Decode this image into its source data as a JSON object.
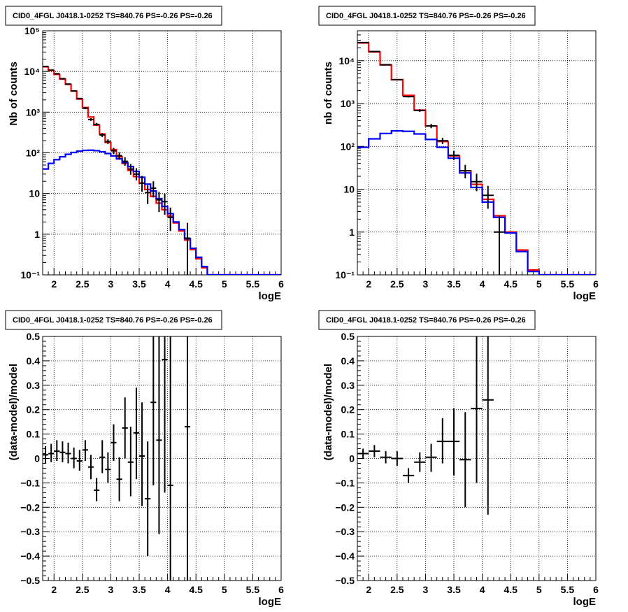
{
  "colors": {
    "data": "#000000",
    "total_model": "#ff0000",
    "source_model": "#0000ff",
    "grid": "#000000",
    "frame": "#000000"
  },
  "chart_data": [
    {
      "type": "line",
      "title": "CID0_4FGL J0418.1-0252 TS=840.76 PS=-0.26 PS=-0.26",
      "xlabel": "logE",
      "ylabel": "Nb of counts",
      "yscale": "log",
      "xlim": [
        1.8,
        6
      ],
      "ylim": [
        0.1,
        100000
      ],
      "grid": true,
      "xticks": [
        "2",
        "2.5",
        "3",
        "3.5",
        "4",
        "4.5",
        "5",
        "5.5",
        "6"
      ],
      "yticks": [
        "10⁻¹",
        "1",
        "10",
        "10²",
        "10³",
        "10⁴",
        "10⁵"
      ],
      "bin_edges": [
        1.8,
        1.9,
        2.0,
        2.1,
        2.2,
        2.3,
        2.4,
        2.5,
        2.6,
        2.7,
        2.8,
        2.9,
        3.0,
        3.1,
        3.2,
        3.3,
        3.4,
        3.5,
        3.6,
        3.7,
        3.8,
        3.9,
        4.0,
        4.1,
        4.2,
        4.3,
        4.4,
        4.5,
        4.6,
        4.7,
        4.8,
        4.9,
        5.0,
        5.1,
        5.2,
        5.3,
        5.4,
        5.5,
        5.6,
        5.7,
        5.8,
        5.9,
        6.0
      ],
      "series": [
        {
          "name": "",
          "color": "#ff0000",
          "kind": "step",
          "values": [
            13000,
            10500,
            8500,
            6500,
            4800,
            3300,
            2100,
            1300,
            760,
            480,
            290,
            180,
            120,
            80,
            55,
            37,
            26,
            18,
            12.5,
            8.5,
            5.8,
            4,
            2.8,
            1.9,
            1.2,
            0.72,
            0.42,
            0.25,
            0.15,
            0.1,
            0.1,
            0.1,
            0.1,
            0.1,
            0.1,
            0.1,
            0.1,
            0.1,
            0.1,
            0.1,
            0.1,
            0.1
          ]
        },
        {
          "name": "",
          "color": "#0000ff",
          "kind": "step",
          "values": [
            40,
            55,
            68,
            80,
            92,
            102,
            110,
            115,
            116,
            113,
            106,
            96,
            84,
            71,
            58,
            46,
            35,
            25,
            17,
            11.5,
            7.5,
            4.8,
            3.2,
            2.0,
            1.3,
            0.78,
            0.45,
            0.27,
            0.16,
            0.1,
            0.1,
            0.1,
            0.1,
            0.1,
            0.1,
            0.1,
            0.1,
            0.1,
            0.1,
            0.1,
            0.1,
            0.1
          ]
        },
        {
          "name": "",
          "color": "#000000",
          "kind": "errorbar",
          "points": [
            {
              "x": 1.85,
              "y": 13300,
              "ylo": 13050,
              "yhi": 13550
            },
            {
              "x": 1.95,
              "y": 10800,
              "ylo": 10600,
              "yhi": 11000
            },
            {
              "x": 2.05,
              "y": 8800,
              "ylo": 8600,
              "yhi": 9000
            },
            {
              "x": 2.15,
              "y": 6650,
              "ylo": 6480,
              "yhi": 6820
            },
            {
              "x": 2.25,
              "y": 4900,
              "ylo": 4760,
              "yhi": 5040
            },
            {
              "x": 2.35,
              "y": 3320,
              "ylo": 3200,
              "yhi": 3440
            },
            {
              "x": 2.45,
              "y": 2160,
              "ylo": 2070,
              "yhi": 2250
            },
            {
              "x": 2.55,
              "y": 1250,
              "ylo": 1180,
              "yhi": 1320
            },
            {
              "x": 2.65,
              "y": 660,
              "ylo": 610,
              "yhi": 710
            },
            {
              "x": 2.75,
              "y": 500,
              "ylo": 455,
              "yhi": 545
            },
            {
              "x": 2.85,
              "y": 275,
              "ylo": 243,
              "yhi": 307
            },
            {
              "x": 2.95,
              "y": 190,
              "ylo": 165,
              "yhi": 215
            },
            {
              "x": 3.05,
              "y": 112,
              "ylo": 93,
              "yhi": 133
            },
            {
              "x": 3.15,
              "y": 85,
              "ylo": 68,
              "yhi": 103
            },
            {
              "x": 3.25,
              "y": 62,
              "ylo": 48,
              "yhi": 78
            },
            {
              "x": 3.35,
              "y": 40,
              "ylo": 29,
              "yhi": 53
            },
            {
              "x": 3.45,
              "y": 30,
              "ylo": 21,
              "yhi": 42
            },
            {
              "x": 3.55,
              "y": 18,
              "ylo": 11,
              "yhi": 27
            },
            {
              "x": 3.65,
              "y": 10.5,
              "ylo": 5.5,
              "yhi": 16
            },
            {
              "x": 3.75,
              "y": 13.5,
              "ylo": 8,
              "yhi": 20
            },
            {
              "x": 3.85,
              "y": 7,
              "ylo": 3.5,
              "yhi": 11
            },
            {
              "x": 3.95,
              "y": 6.3,
              "ylo": 3.0,
              "yhi": 10
            },
            {
              "x": 4.05,
              "y": 2.6,
              "ylo": 1.2,
              "yhi": 4.5
            },
            {
              "x": 4.35,
              "y": 0.8,
              "ylo": 0.1,
              "yhi": 1.9
            }
          ]
        }
      ]
    },
    {
      "type": "line",
      "title": "CID0_4FGL J0418.1-0252 TS=840.76 PS=-0.26 PS=-0.26",
      "xlabel": "logE",
      "ylabel": "nb of counts",
      "yscale": "log",
      "xlim": [
        1.8,
        6
      ],
      "ylim": [
        0.1,
        50000
      ],
      "grid": true,
      "xticks": [
        "2",
        "2.5",
        "3",
        "3.5",
        "4",
        "4.5",
        "5",
        "5.5",
        "6"
      ],
      "yticks": [
        "10⁻¹",
        "1",
        "10",
        "10²",
        "10³",
        "10⁴"
      ],
      "bin_edges": [
        1.8,
        2.0,
        2.2,
        2.4,
        2.6,
        2.8,
        3.0,
        3.2,
        3.4,
        3.6,
        3.8,
        4.0,
        4.2,
        4.4,
        4.6,
        4.8,
        5.0,
        5.2,
        5.4,
        5.6,
        5.8,
        6.0
      ],
      "series": [
        {
          "name": "",
          "color": "#ff0000",
          "kind": "step",
          "values": [
            26000,
            16000,
            8000,
            3600,
            1550,
            700,
            300,
            130,
            60,
            27,
            13,
            5.8,
            2.4,
            1.0,
            0.38,
            0.13,
            0.1,
            0.1,
            0.1,
            0.1,
            0.1
          ]
        },
        {
          "name": "",
          "color": "#0000ff",
          "kind": "step",
          "values": [
            95,
            150,
            200,
            230,
            225,
            195,
            145,
            95,
            53,
            24,
            11,
            5.0,
            2.2,
            0.95,
            0.35,
            0.12,
            0.1,
            0.1,
            0.1,
            0.1,
            0.1
          ]
        },
        {
          "name": "",
          "color": "#000000",
          "kind": "errorbar",
          "points": [
            {
              "x": 1.9,
              "y": 26500,
              "ylo": 26150,
              "yhi": 26850
            },
            {
              "x": 2.1,
              "y": 16400,
              "ylo": 16150,
              "yhi": 16650
            },
            {
              "x": 2.3,
              "y": 8050,
              "ylo": 7880,
              "yhi": 8220
            },
            {
              "x": 2.5,
              "y": 3620,
              "ylo": 3500,
              "yhi": 3740
            },
            {
              "x": 2.7,
              "y": 1450,
              "ylo": 1380,
              "yhi": 1520
            },
            {
              "x": 2.9,
              "y": 690,
              "ylo": 640,
              "yhi": 740
            },
            {
              "x": 3.1,
              "y": 300,
              "ylo": 266,
              "yhi": 335
            },
            {
              "x": 3.3,
              "y": 135,
              "ylo": 113,
              "yhi": 159
            },
            {
              "x": 3.5,
              "y": 62,
              "ylo": 48,
              "yhi": 78
            },
            {
              "x": 3.7,
              "y": 27,
              "ylo": 18,
              "yhi": 37
            },
            {
              "x": 3.9,
              "y": 15,
              "ylo": 9,
              "yhi": 23
            },
            {
              "x": 4.1,
              "y": 7.2,
              "ylo": 3.5,
              "yhi": 12
            },
            {
              "x": 4.3,
              "y": 1.0,
              "ylo": 0.1,
              "yhi": 2.4
            }
          ]
        }
      ]
    },
    {
      "type": "scatter",
      "title": "CID0_4FGL J0418.1-0252 TS=840.76 PS=-0.26 PS=-0.26",
      "xlabel": "logE",
      "ylabel": "(data-model)/model",
      "yscale": "linear",
      "xlim": [
        1.8,
        6
      ],
      "ylim": [
        -0.5,
        0.5
      ],
      "grid": true,
      "xticks": [
        "2",
        "2.5",
        "3",
        "3.5",
        "4",
        "4.5",
        "5",
        "5.5",
        "6"
      ],
      "yticks": [
        "−0.5",
        "−0.4",
        "−0.3",
        "−0.2",
        "−0.1",
        "0",
        "0.1",
        "0.2",
        "0.3",
        "0.4",
        "0.5"
      ],
      "series": [
        {
          "name": "",
          "color": "#000000",
          "kind": "errorbar",
          "xerr": 0.05,
          "points": [
            {
              "x": 1.85,
              "y": 0.015,
              "ylo": -0.02,
              "yhi": 0.05
            },
            {
              "x": 1.95,
              "y": 0.02,
              "ylo": -0.015,
              "yhi": 0.06
            },
            {
              "x": 2.05,
              "y": 0.03,
              "ylo": -0.01,
              "yhi": 0.075
            },
            {
              "x": 2.15,
              "y": 0.025,
              "ylo": -0.015,
              "yhi": 0.07
            },
            {
              "x": 2.25,
              "y": 0.02,
              "ylo": -0.02,
              "yhi": 0.065
            },
            {
              "x": 2.35,
              "y": 0.0,
              "ylo": -0.04,
              "yhi": 0.045
            },
            {
              "x": 2.45,
              "y": -0.01,
              "ylo": -0.05,
              "yhi": 0.035
            },
            {
              "x": 2.55,
              "y": 0.035,
              "ylo": -0.01,
              "yhi": 0.075
            },
            {
              "x": 2.65,
              "y": -0.035,
              "ylo": -0.085,
              "yhi": 0.015
            },
            {
              "x": 2.75,
              "y": -0.13,
              "ylo": -0.175,
              "yhi": -0.08
            },
            {
              "x": 2.85,
              "y": 0.005,
              "ylo": -0.06,
              "yhi": 0.075
            },
            {
              "x": 2.95,
              "y": -0.045,
              "ylo": -0.1,
              "yhi": 0.025
            },
            {
              "x": 3.05,
              "y": 0.065,
              "ylo": -0.01,
              "yhi": 0.14
            },
            {
              "x": 3.15,
              "y": -0.085,
              "ylo": -0.175,
              "yhi": 0.005
            },
            {
              "x": 3.25,
              "y": 0.125,
              "ylo": 0.0,
              "yhi": 0.25
            },
            {
              "x": 3.35,
              "y": -0.015,
              "ylo": -0.155,
              "yhi": 0.13
            },
            {
              "x": 3.45,
              "y": 0.105,
              "ylo": -0.085,
              "yhi": 0.29
            },
            {
              "x": 3.55,
              "y": 0.01,
              "ylo": -0.195,
              "yhi": 0.23
            },
            {
              "x": 3.65,
              "y": -0.165,
              "ylo": -0.4,
              "yhi": 0.07
            },
            {
              "x": 3.75,
              "y": 0.23,
              "ylo": -0.11,
              "yhi": 0.5
            },
            {
              "x": 3.85,
              "y": 0.075,
              "ylo": -0.31,
              "yhi": 0.5
            },
            {
              "x": 3.95,
              "y": 0.405,
              "ylo": -0.14,
              "yhi": 0.5
            },
            {
              "x": 4.05,
              "y": -0.11,
              "ylo": -0.5,
              "yhi": 0.5
            },
            {
              "x": 4.35,
              "y": 0.13,
              "ylo": -0.5,
              "yhi": 0.5
            }
          ]
        }
      ]
    },
    {
      "type": "scatter",
      "title": "CID0_4FGL J0418.1-0252 TS=840.76 PS=-0.26 PS=-0.26",
      "xlabel": "logE",
      "ylabel": "(data-model)/model",
      "yscale": "linear",
      "xlim": [
        1.8,
        6
      ],
      "ylim": [
        -0.5,
        0.5
      ],
      "grid": true,
      "xticks": [
        "2",
        "2.5",
        "3",
        "3.5",
        "4",
        "4.5",
        "5",
        "5.5",
        "6"
      ],
      "yticks": [
        "−0.5",
        "−0.4",
        "−0.3",
        "−0.2",
        "−0.1",
        "0",
        "0.1",
        "0.2",
        "0.3",
        "0.4",
        "0.5"
      ],
      "series": [
        {
          "name": "",
          "color": "#000000",
          "kind": "errorbar",
          "xerr": 0.1,
          "points": [
            {
              "x": 1.9,
              "y": 0.02,
              "ylo": 0.0,
              "yhi": 0.04
            },
            {
              "x": 2.1,
              "y": 0.03,
              "ylo": 0.005,
              "yhi": 0.055
            },
            {
              "x": 2.3,
              "y": 0.005,
              "ylo": -0.02,
              "yhi": 0.03
            },
            {
              "x": 2.5,
              "y": 0.0,
              "ylo": -0.03,
              "yhi": 0.03
            },
            {
              "x": 2.7,
              "y": -0.07,
              "ylo": -0.1,
              "yhi": -0.04
            },
            {
              "x": 2.9,
              "y": -0.015,
              "ylo": -0.055,
              "yhi": 0.025
            },
            {
              "x": 3.1,
              "y": 0.005,
              "ylo": -0.055,
              "yhi": 0.06
            },
            {
              "x": 3.3,
              "y": 0.07,
              "ylo": -0.02,
              "yhi": 0.165
            },
            {
              "x": 3.5,
              "y": 0.07,
              "ylo": -0.07,
              "yhi": 0.205
            },
            {
              "x": 3.7,
              "y": -0.005,
              "ylo": -0.2,
              "yhi": 0.19
            },
            {
              "x": 3.9,
              "y": 0.205,
              "ylo": -0.1,
              "yhi": 0.5
            },
            {
              "x": 4.1,
              "y": 0.24,
              "ylo": -0.23,
              "yhi": 0.5
            }
          ]
        }
      ]
    }
  ]
}
